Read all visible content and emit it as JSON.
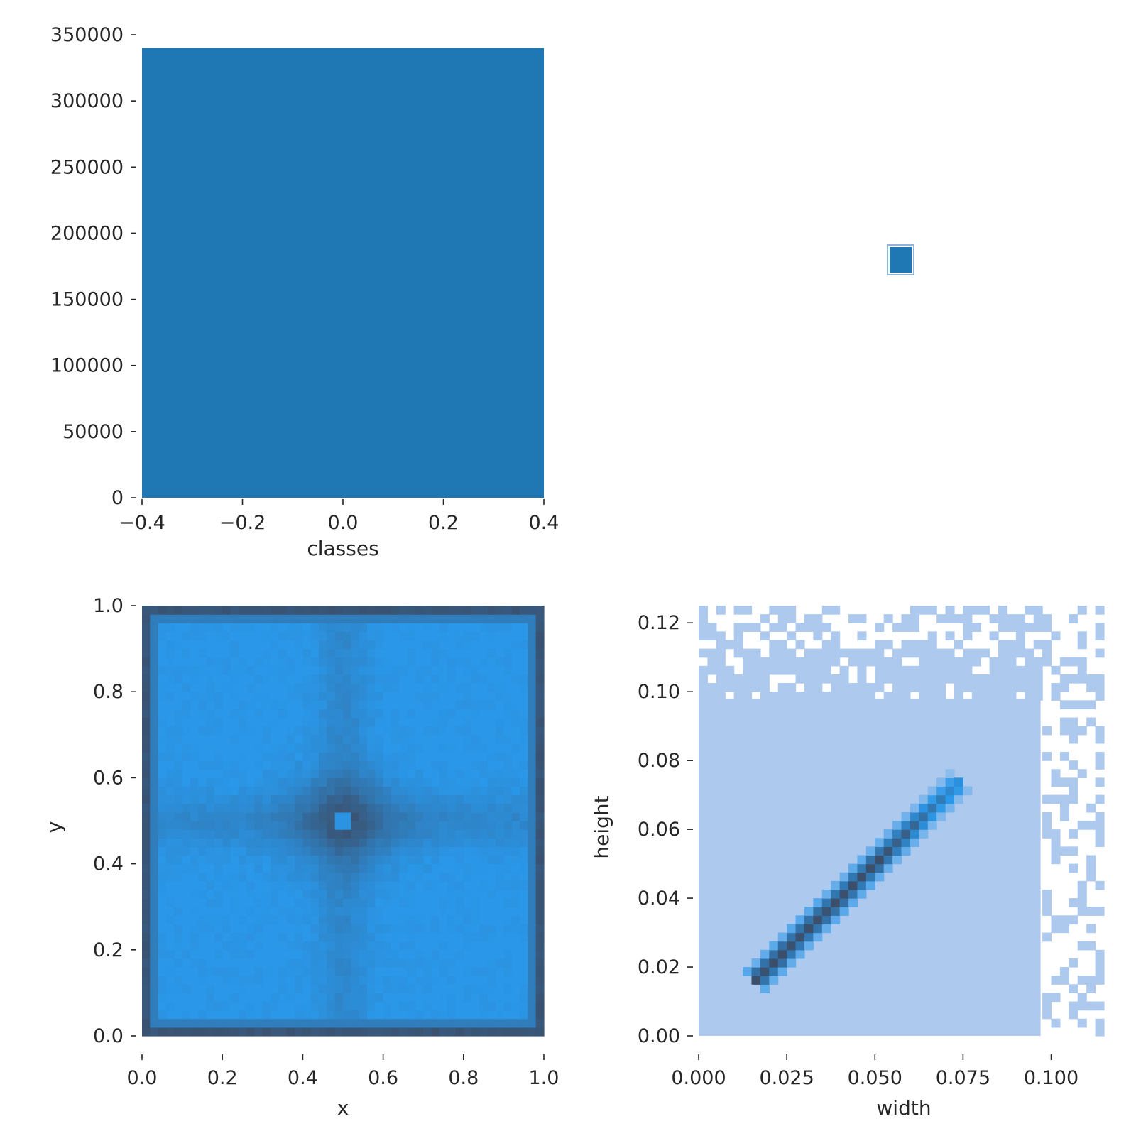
{
  "chart_data": [
    {
      "type": "bar",
      "panel": "top-left",
      "xlabel": "classes",
      "ylabel": "",
      "categories": [
        "0"
      ],
      "values": [
        340000
      ],
      "bar_range": [
        -0.4,
        0.4
      ],
      "xlim": [
        -0.4,
        0.4
      ],
      "ylim": [
        0,
        350000
      ],
      "xticks": [
        -0.4,
        -0.2,
        0.0,
        0.2,
        0.4
      ],
      "xtick_labels": [
        "−0.4",
        "−0.2",
        "0.0",
        "0.2",
        "0.4"
      ],
      "yticks": [
        0,
        50000,
        100000,
        150000,
        200000,
        250000,
        300000,
        350000
      ],
      "ytick_labels": [
        "0",
        "50000",
        "100000",
        "150000",
        "200000",
        "250000",
        "300000",
        "350000"
      ],
      "color": "#1f77b4",
      "grid": false
    },
    {
      "type": "heatmap",
      "panel": "top-right",
      "description_free": true,
      "markers": [
        {
          "x": 0,
          "y": 0
        }
      ],
      "color": "#1f77b4",
      "grid": false
    },
    {
      "type": "heatmap",
      "panel": "bottom-left",
      "xlabel": "x",
      "ylabel": "y",
      "xlim": [
        0,
        1
      ],
      "ylim": [
        0,
        1
      ],
      "bins": 50,
      "xticks": [
        0.0,
        0.2,
        0.4,
        0.6,
        0.8,
        1.0
      ],
      "xtick_labels": [
        "0.0",
        "0.2",
        "0.4",
        "0.6",
        "0.8",
        "1.0"
      ],
      "yticks": [
        0.0,
        0.2,
        0.4,
        0.6,
        0.8,
        1.0
      ],
      "ytick_labels": [
        "0.0",
        "0.2",
        "0.4",
        "0.6",
        "0.8",
        "1.0"
      ],
      "low_color": "#2a97e8",
      "high_color": "#3b4e6a",
      "grid": false
    },
    {
      "type": "heatmap",
      "panel": "bottom-right",
      "xlabel": "width",
      "ylabel": "height",
      "xlim": [
        0,
        0.115
      ],
      "ylim": [
        0,
        0.125
      ],
      "bins_x": 46,
      "bins_y": 50,
      "xticks": [
        0.0,
        0.025,
        0.05,
        0.075,
        0.1
      ],
      "xtick_labels": [
        "0.000",
        "0.025",
        "0.050",
        "0.075",
        "0.100"
      ],
      "yticks": [
        0.0,
        0.02,
        0.04,
        0.06,
        0.08,
        0.1,
        0.12
      ],
      "ytick_labels": [
        "0.00",
        "0.02",
        "0.04",
        "0.06",
        "0.08",
        "0.10",
        "0.12"
      ],
      "ridge": {
        "from": [
          0.02,
          0.02
        ],
        "to": [
          0.07,
          0.07
        ]
      },
      "low_color": "#aec9ee",
      "mid_color": "#2a97e8",
      "high_color": "#3b4e6a",
      "grid": false
    }
  ]
}
